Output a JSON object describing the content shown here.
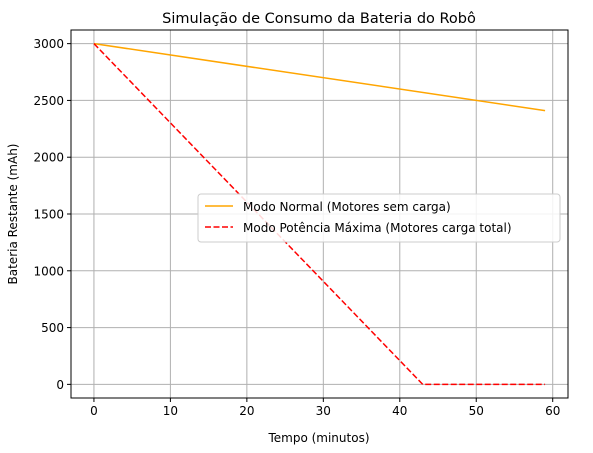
{
  "chart_data": {
    "type": "line",
    "title": "Simulação de Consumo da Bateria do Robô",
    "xlabel": "Tempo (minutos)",
    "ylabel": "Bateria Restante (mAh)",
    "xlim": [
      -3,
      62
    ],
    "ylim": [
      -120,
      3120
    ],
    "xticks": [
      0,
      10,
      20,
      30,
      40,
      50,
      60
    ],
    "yticks": [
      0,
      500,
      1000,
      1500,
      2000,
      2500,
      3000
    ],
    "grid": true,
    "legend_position": "center-right",
    "series": [
      {
        "name": "Modo Normal (Motores sem carga)",
        "color": "#ffa500",
        "style": "solid",
        "x": [
          0,
          59
        ],
        "y": [
          3000,
          2410
        ]
      },
      {
        "name": "Modo Potência Máxima (Motores carga total)",
        "color": "#ff0000",
        "style": "dashed",
        "x": [
          0,
          43,
          59
        ],
        "y": [
          3000,
          0,
          0
        ]
      }
    ]
  }
}
